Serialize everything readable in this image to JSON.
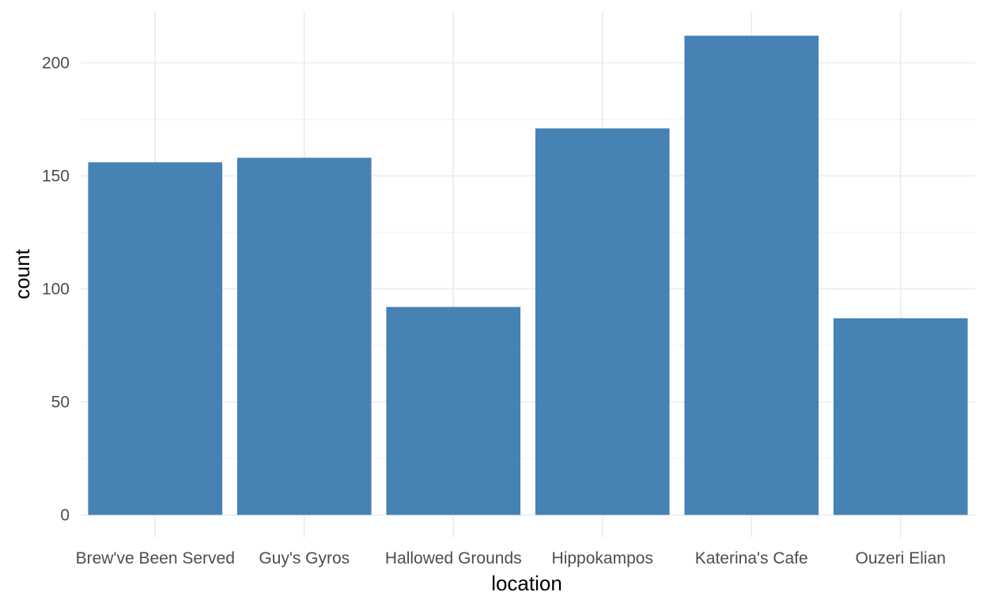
{
  "chart_data": {
    "type": "bar",
    "title": "",
    "xlabel": "location",
    "ylabel": "count",
    "categories": [
      "Brew've Been Served",
      "Guy's Gyros",
      "Hallowed Grounds",
      "Hippokampos",
      "Katerina's Cafe",
      "Ouzeri Elian"
    ],
    "values": [
      156,
      158,
      92,
      171,
      212,
      87
    ],
    "ylim": [
      0,
      212
    ],
    "yticks": [
      0,
      50,
      100,
      150,
      200
    ],
    "ytick_labels": [
      "0",
      "50",
      "100",
      "150",
      "200"
    ],
    "grid": true,
    "legend": "none",
    "bar_color": "#4682b4",
    "grid_color": "#ebebeb"
  }
}
